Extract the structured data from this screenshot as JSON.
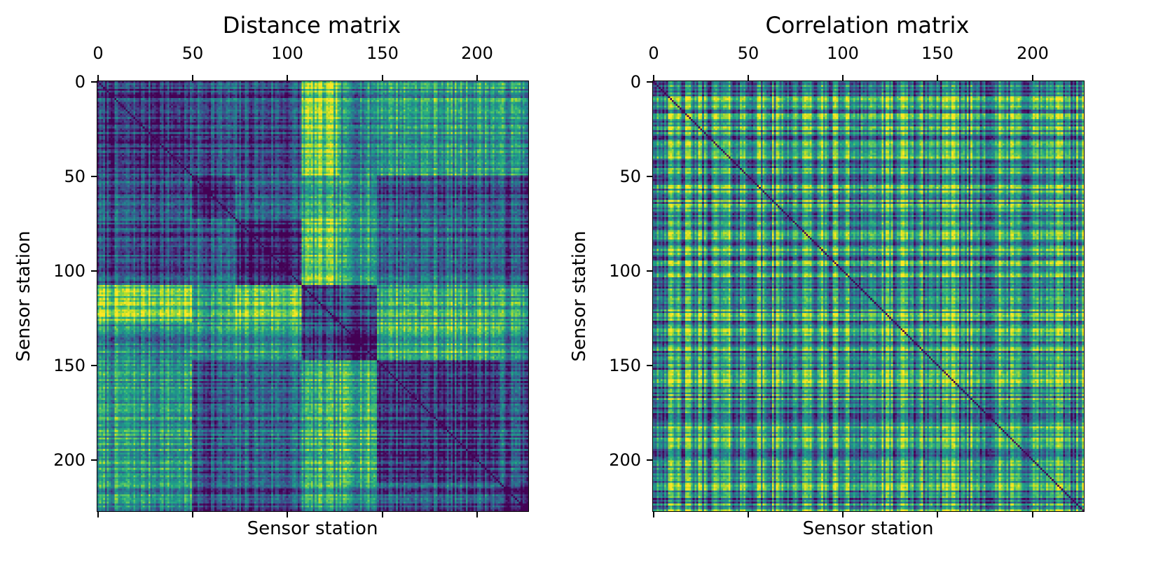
{
  "chart_data": [
    {
      "type": "heatmap",
      "title": "Distance matrix",
      "xlabel": "Sensor station",
      "ylabel": "Sensor station",
      "size": 228,
      "colormap": "viridis",
      "x_tick_values": [
        0,
        50,
        100,
        150,
        200
      ],
      "x_tick_labels_top": [
        "0",
        "50",
        "100",
        "150",
        "200"
      ],
      "y_tick_values": [
        0,
        50,
        100,
        150,
        200
      ],
      "y_tick_labels": [
        "0",
        "50",
        "100",
        "150",
        "200"
      ],
      "xlim": [
        0,
        228
      ],
      "ylim": [
        0,
        228
      ],
      "blocks": [
        [
          0,
          50
        ],
        [
          50,
          73
        ],
        [
          73,
          108
        ],
        [
          108,
          128
        ],
        [
          128,
          148
        ],
        [
          148,
          213
        ],
        [
          213,
          228
        ]
      ],
      "block_group_levels": [
        [
          0.15,
          0.25,
          0.22,
          0.75,
          0.45,
          0.55,
          0.5
        ],
        [
          0.25,
          0.12,
          0.3,
          0.55,
          0.5,
          0.28,
          0.22
        ],
        [
          0.22,
          0.3,
          0.1,
          0.7,
          0.55,
          0.35,
          0.25
        ],
        [
          0.75,
          0.55,
          0.7,
          0.12,
          0.2,
          0.6,
          0.55
        ],
        [
          0.45,
          0.5,
          0.55,
          0.2,
          0.1,
          0.65,
          0.5
        ],
        [
          0.55,
          0.28,
          0.35,
          0.6,
          0.65,
          0.18,
          0.28
        ],
        [
          0.5,
          0.22,
          0.25,
          0.55,
          0.5,
          0.28,
          0.1
        ]
      ]
    },
    {
      "type": "heatmap",
      "title": "Correlation matrix",
      "xlabel": "Sensor station",
      "ylabel": "Sensor station",
      "size": 228,
      "colormap": "viridis",
      "x_tick_values": [
        0,
        50,
        100,
        150,
        200
      ],
      "x_tick_labels_top": [
        "0",
        "50",
        "100",
        "150",
        "200"
      ],
      "y_tick_values": [
        0,
        50,
        100,
        150,
        200
      ],
      "y_tick_labels": [
        "0",
        "50",
        "100",
        "150",
        "200"
      ],
      "xlim": [
        0,
        228
      ],
      "ylim": [
        0,
        228
      ],
      "mean_level": 0.5,
      "diagonal_level": 0.0
    }
  ]
}
